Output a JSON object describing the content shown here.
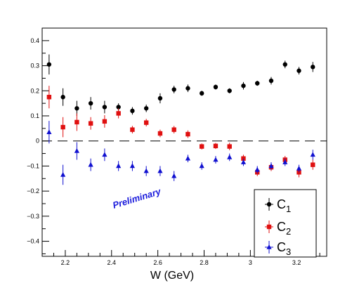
{
  "chart_data": {
    "type": "scatter",
    "xlabel": "W (GeV)",
    "ylabel": "",
    "xlim": [
      2.1,
      3.33
    ],
    "ylim": [
      -0.46,
      0.45
    ],
    "x_ticks": [
      "2.2",
      "2.4",
      "2.6",
      "2.8",
      "3",
      "3.2"
    ],
    "y_ticks": [
      "0.4",
      "0.3",
      "0.2",
      "0.1",
      "0",
      "−0.1",
      "−0.2",
      "−0.3",
      "−0.4"
    ],
    "grid": false,
    "legend_position": "bottom-right",
    "annotation": "Preliminary",
    "colors": {
      "annotation": "#1a1adc",
      "zero_line": "#000000"
    },
    "series": [
      {
        "name": "C",
        "subscript": "1",
        "marker": "circle",
        "color": "#000000",
        "x": [
          2.13,
          2.19,
          2.25,
          2.31,
          2.37,
          2.43,
          2.49,
          2.55,
          2.61,
          2.67,
          2.73,
          2.79,
          2.85,
          2.91,
          2.97,
          3.03,
          3.09,
          3.15,
          3.21,
          3.27
        ],
        "y": [
          0.305,
          0.175,
          0.13,
          0.15,
          0.135,
          0.135,
          0.12,
          0.13,
          0.17,
          0.205,
          0.21,
          0.19,
          0.215,
          0.2,
          0.22,
          0.23,
          0.24,
          0.305,
          0.28,
          0.295
        ],
        "err": [
          0.04,
          0.035,
          0.03,
          0.025,
          0.025,
          0.015,
          0.015,
          0.015,
          0.02,
          0.015,
          0.015,
          0.01,
          0.01,
          0.01,
          0.015,
          0.01,
          0.015,
          0.015,
          0.015,
          0.02
        ]
      },
      {
        "name": "C",
        "subscript": "2",
        "marker": "square",
        "color": "#e01010",
        "x": [
          2.13,
          2.19,
          2.25,
          2.31,
          2.37,
          2.43,
          2.49,
          2.55,
          2.61,
          2.67,
          2.73,
          2.79,
          2.85,
          2.91,
          2.97,
          3.03,
          3.09,
          3.15,
          3.21,
          3.27
        ],
        "y": [
          0.175,
          0.055,
          0.075,
          0.07,
          0.078,
          0.11,
          0.045,
          0.073,
          0.03,
          0.045,
          0.027,
          -0.022,
          -0.02,
          -0.022,
          -0.07,
          -0.125,
          -0.105,
          -0.075,
          -0.125,
          -0.095
        ],
        "err": [
          0.045,
          0.04,
          0.035,
          0.025,
          0.025,
          0.02,
          0.015,
          0.015,
          0.015,
          0.015,
          0.015,
          0.012,
          0.012,
          0.015,
          0.015,
          0.015,
          0.015,
          0.015,
          0.02,
          0.02
        ]
      },
      {
        "name": "C",
        "subscript": "3",
        "marker": "triangle",
        "color": "#1010d0",
        "x": [
          2.13,
          2.19,
          2.25,
          2.31,
          2.37,
          2.43,
          2.49,
          2.55,
          2.61,
          2.67,
          2.73,
          2.79,
          2.85,
          2.91,
          2.97,
          3.03,
          3.09,
          3.15,
          3.21,
          3.27
        ],
        "y": [
          0.035,
          -0.135,
          -0.04,
          -0.095,
          -0.055,
          -0.1,
          -0.1,
          -0.12,
          -0.12,
          -0.14,
          -0.07,
          -0.1,
          -0.075,
          -0.065,
          -0.085,
          -0.115,
          -0.1,
          -0.085,
          -0.11,
          -0.055
        ],
        "err": [
          0.045,
          0.04,
          0.035,
          0.025,
          0.025,
          0.02,
          0.02,
          0.02,
          0.02,
          0.02,
          0.015,
          0.015,
          0.015,
          0.015,
          0.015,
          0.015,
          0.015,
          0.015,
          0.015,
          0.02
        ]
      }
    ]
  }
}
